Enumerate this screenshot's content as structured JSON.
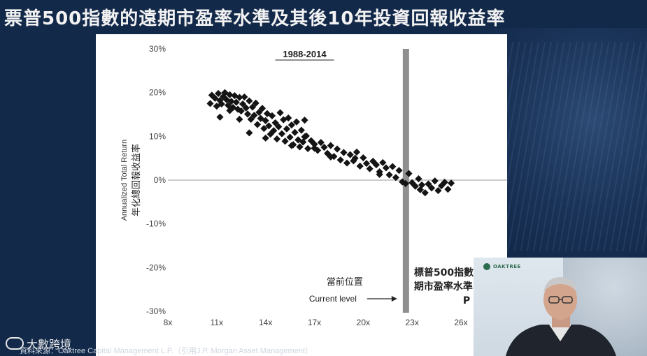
{
  "title": "票普500指數的遠期市盈率水準及其後10年投資回報收益率",
  "source": "資料來源：Oaktree Capital Management L.P.（引用J.P. Morgan Asset Management）",
  "brand": "大數跨境",
  "webcam": {
    "logo_text": "OAKTREE"
  },
  "chart_data": {
    "type": "scatter",
    "title": "1988-2014",
    "ylabel_en": "Annualized Total Return",
    "ylabel_zh": "年化總回報收益率",
    "xticks": [
      "8x",
      "11x",
      "14x",
      "17x",
      "20x",
      "23x",
      "26x"
    ],
    "yticks": [
      "30%",
      "20%",
      "10%",
      "0%",
      "-10%",
      "-20%",
      "-30%"
    ],
    "xlim": [
      8,
      26
    ],
    "ylim": [
      -30,
      30
    ],
    "current_level": 22.6,
    "current_label_zh": "當前位置",
    "current_label_en": "Current level",
    "callout_line1": "標普500指數",
    "callout_line2": "期市盈率水準",
    "callout_line3": "P",
    "points": [
      [
        10.6,
        17.5
      ],
      [
        10.7,
        19.4
      ],
      [
        10.9,
        18.7
      ],
      [
        11.0,
        16.9
      ],
      [
        11.1,
        19.8
      ],
      [
        11.2,
        18.2
      ],
      [
        11.3,
        17.4
      ],
      [
        11.4,
        19.1
      ],
      [
        11.5,
        20.0
      ],
      [
        11.6,
        18.4
      ],
      [
        11.7,
        17.1
      ],
      [
        11.8,
        19.5
      ],
      [
        11.9,
        18.0
      ],
      [
        12.0,
        16.6
      ],
      [
        12.1,
        19.3
      ],
      [
        12.2,
        17.8
      ],
      [
        12.3,
        16.2
      ],
      [
        12.4,
        18.9
      ],
      [
        12.5,
        15.8
      ],
      [
        12.6,
        17.4
      ],
      [
        12.7,
        19.0
      ],
      [
        12.8,
        16.5
      ],
      [
        12.9,
        15.1
      ],
      [
        13.0,
        18.1
      ],
      [
        13.1,
        13.9
      ],
      [
        13.2,
        16.7
      ],
      [
        13.3,
        14.8
      ],
      [
        13.4,
        17.6
      ],
      [
        13.5,
        12.7
      ],
      [
        13.6,
        15.5
      ],
      [
        13.7,
        14.1
      ],
      [
        13.8,
        16.4
      ],
      [
        13.9,
        11.8
      ],
      [
        14.0,
        13.6
      ],
      [
        14.1,
        15.2
      ],
      [
        14.2,
        12.4
      ],
      [
        14.3,
        10.5
      ],
      [
        14.4,
        14.7
      ],
      [
        14.5,
        11.3
      ],
      [
        14.6,
        13.1
      ],
      [
        14.7,
        9.4
      ],
      [
        14.8,
        12.2
      ],
      [
        14.9,
        15.4
      ],
      [
        15.0,
        10.6
      ],
      [
        15.1,
        13.8
      ],
      [
        15.2,
        8.9
      ],
      [
        15.3,
        11.7
      ],
      [
        15.4,
        14.2
      ],
      [
        15.5,
        9.8
      ],
      [
        15.6,
        12.6
      ],
      [
        15.7,
        8.1
      ],
      [
        15.8,
        10.9
      ],
      [
        15.9,
        13.3
      ],
      [
        16.0,
        9.2
      ],
      [
        16.1,
        7.6
      ],
      [
        16.2,
        11.4
      ],
      [
        16.3,
        8.7
      ],
      [
        16.4,
        13.7
      ],
      [
        16.5,
        10.1
      ],
      [
        16.6,
        7.2
      ],
      [
        16.8,
        9.0
      ],
      [
        17.0,
        8.2
      ],
      [
        17.2,
        6.8
      ],
      [
        17.4,
        8.6
      ],
      [
        17.6,
        7.5
      ],
      [
        17.8,
        6.1
      ],
      [
        18.0,
        7.9
      ],
      [
        18.2,
        5.4
      ],
      [
        18.4,
        7.1
      ],
      [
        18.6,
        4.6
      ],
      [
        18.8,
        6.3
      ],
      [
        19.0,
        3.9
      ],
      [
        19.2,
        5.8
      ],
      [
        19.4,
        4.4
      ],
      [
        19.6,
        6.4
      ],
      [
        19.8,
        3.2
      ],
      [
        20.0,
        5.1
      ],
      [
        20.2,
        3.8
      ],
      [
        20.4,
        2.6
      ],
      [
        20.6,
        4.3
      ],
      [
        20.8,
        3.5
      ],
      [
        21.0,
        1.9
      ],
      [
        21.2,
        4.0
      ],
      [
        21.4,
        2.8
      ],
      [
        21.6,
        1.2
      ],
      [
        21.8,
        3.1
      ],
      [
        22.0,
        0.6
      ],
      [
        22.2,
        2.2
      ],
      [
        22.4,
        -0.4
      ],
      [
        22.6,
        -0.8
      ],
      [
        22.8,
        1.5
      ],
      [
        23.0,
        -0.6
      ],
      [
        23.2,
        -1.4
      ],
      [
        23.4,
        0.3
      ],
      [
        23.6,
        -1.1
      ],
      [
        23.8,
        -2.9
      ],
      [
        24.0,
        -0.9
      ],
      [
        24.2,
        -1.8
      ],
      [
        24.4,
        -0.2
      ],
      [
        24.6,
        -2.4
      ],
      [
        24.8,
        -1.3
      ],
      [
        25.0,
        -0.5
      ],
      [
        25.2,
        -2.1
      ],
      [
        25.4,
        -0.7
      ],
      [
        14.0,
        9.6
      ],
      [
        13.0,
        10.8
      ],
      [
        12.4,
        13.9
      ],
      [
        15.6,
        7.9
      ],
      [
        17.0,
        7.3
      ],
      [
        16.4,
        9.9
      ],
      [
        11.2,
        14.4
      ],
      [
        11.8,
        15.9
      ],
      [
        18.0,
        5.3
      ],
      [
        19.5,
        5.0
      ],
      [
        21.0,
        1.3
      ],
      [
        23.5,
        -2.2
      ]
    ]
  }
}
